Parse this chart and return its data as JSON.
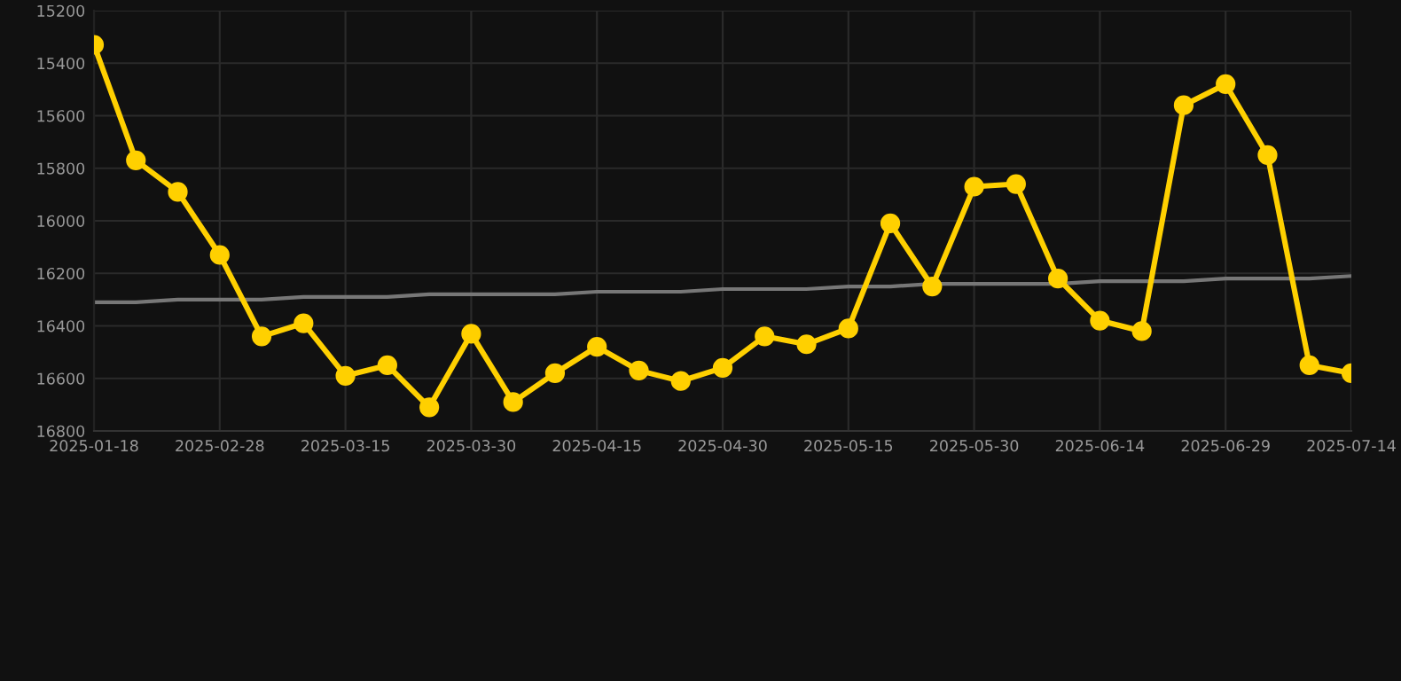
{
  "chart_data": {
    "type": "line",
    "categories": [
      "2025-01-18",
      null,
      null,
      "2025-02-28",
      null,
      null,
      "2025-03-15",
      null,
      null,
      "2025-03-30",
      null,
      null,
      "2025-04-15",
      null,
      null,
      "2025-04-30",
      null,
      null,
      "2025-05-15",
      null,
      null,
      "2025-05-30",
      null,
      null,
      "2025-06-14",
      null,
      null,
      "2025-06-29",
      null,
      null,
      "2025-07-14"
    ],
    "series": [
      {
        "color": "#ffd000",
        "marker": "circle",
        "values": [
          15330,
          15770,
          15890,
          16130,
          16440,
          16390,
          16590,
          16550,
          16710,
          16430,
          16690,
          16580,
          16480,
          16570,
          16610,
          16560,
          16440,
          16470,
          16410,
          16010,
          16250,
          15870,
          15860,
          16220,
          16380,
          16420,
          15560,
          15480,
          15750,
          16550,
          16580
        ]
      },
      {
        "color": "#777777",
        "marker": "none",
        "values": [
          16310,
          16310,
          16300,
          16300,
          16300,
          16290,
          16290,
          16290,
          16280,
          16280,
          16280,
          16280,
          16270,
          16270,
          16270,
          16260,
          16260,
          16260,
          16250,
          16250,
          16240,
          16240,
          16240,
          16240,
          16230,
          16230,
          16230,
          16220,
          16220,
          16220,
          16210
        ]
      }
    ],
    "ylim": [
      16800,
      15200
    ],
    "yticks": [
      15200,
      15400,
      15600,
      15800,
      16000,
      16200,
      16400,
      16600,
      16800
    ],
    "grid": true,
    "line_style": "solid"
  }
}
